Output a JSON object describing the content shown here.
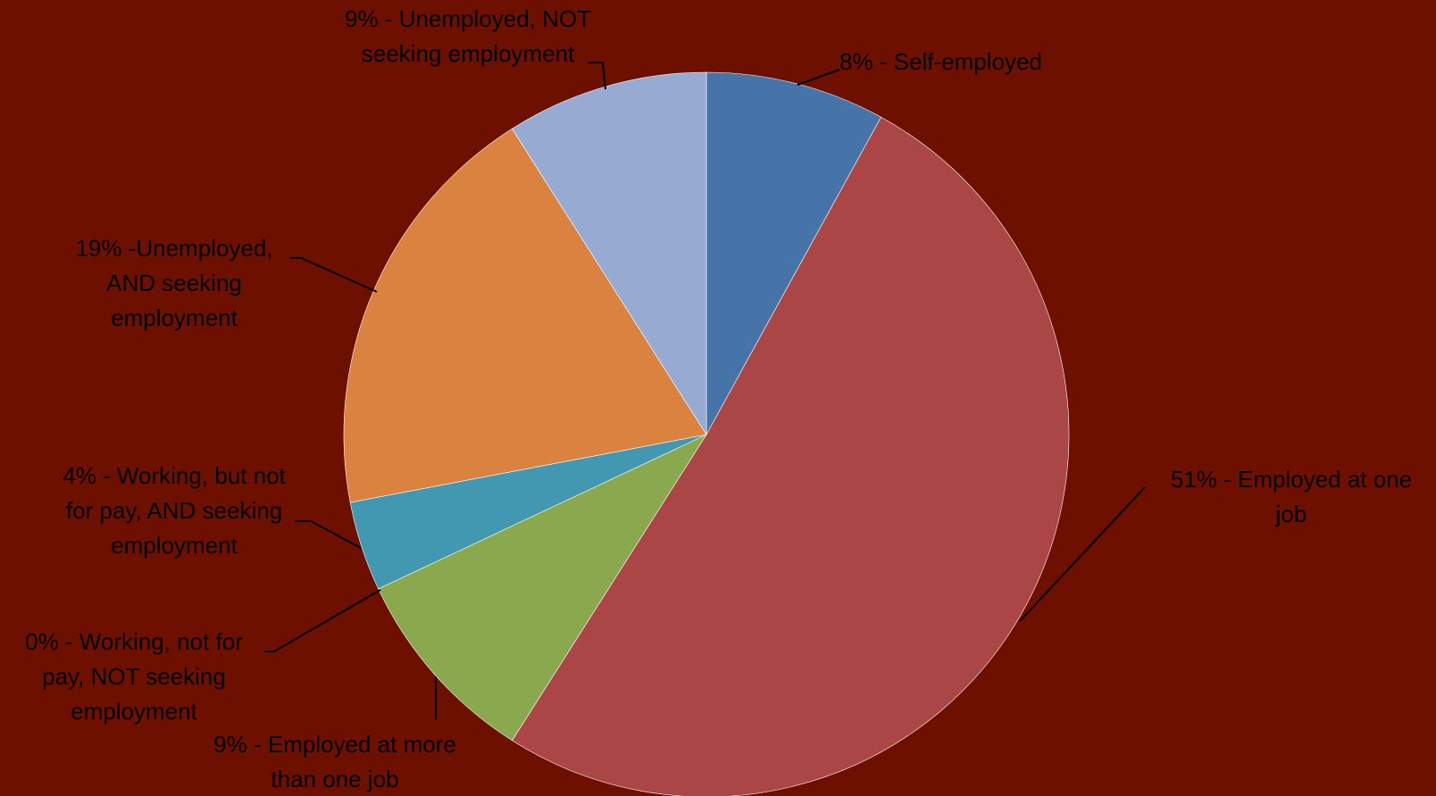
{
  "colors": {
    "background": "#6e1000",
    "label_text": "#000000",
    "leader_line": "#000000"
  },
  "chart_data": {
    "type": "pie",
    "title": "",
    "start_angle_deg": 0,
    "direction": "clockwise",
    "legend": "none",
    "slices": [
      {
        "category": "Self-employed",
        "value": 8,
        "color": "#4674a8",
        "label_lines": [
          "8% - Self-employed"
        ]
      },
      {
        "category": "Employed at one job",
        "value": 51,
        "color": "#aa4646",
        "label_lines": [
          "51% - Employed at one",
          "job"
        ]
      },
      {
        "category": "Employed at more than one job",
        "value": 9,
        "color": "#8aa84e",
        "label_lines": [
          "9% - Employed at more",
          "than one job"
        ]
      },
      {
        "category": "Working, not for pay, NOT seeking employment",
        "value": 0,
        "color": "#7a5ea0",
        "label_lines": [
          "0% - Working, not for",
          "pay, NOT seeking",
          "employment"
        ]
      },
      {
        "category": "Working, but not for pay, AND seeking employment",
        "value": 4,
        "color": "#4298b0",
        "label_lines": [
          "4% - Working, but not",
          "for pay, AND seeking",
          "employment"
        ]
      },
      {
        "category": "Unemployed, AND seeking employment",
        "value": 19,
        "color": "#da8240",
        "label_lines": [
          "19% -Unemployed,",
          "AND seeking",
          "employment"
        ]
      },
      {
        "category": "Unemployed, NOT seeking employment",
        "value": 9,
        "color": "#96aad2",
        "label_lines": [
          "9% - Unemployed, NOT",
          "seeking employment"
        ]
      }
    ]
  }
}
